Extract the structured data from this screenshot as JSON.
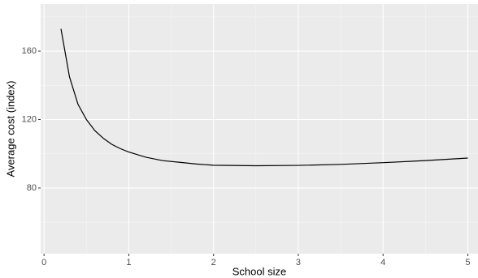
{
  "chart_data": {
    "type": "line",
    "x_label": "School size",
    "y_label": "Average cost (index)",
    "x": [
      0.2,
      0.3,
      0.4,
      0.5,
      0.6,
      0.7,
      0.8,
      0.9,
      1.0,
      1.2,
      1.4,
      1.6,
      1.8,
      2.0,
      2.5,
      3.0,
      3.5,
      4.0,
      4.5,
      5.0
    ],
    "series": [
      {
        "name": null,
        "color": "#000000",
        "values": [
          173,
          145,
          129,
          120,
          113.5,
          109,
          105.5,
          103,
          101,
          98,
          96,
          95,
          94,
          93.3,
          93,
          93.2,
          93.8,
          94.8,
          96,
          97.5
        ]
      }
    ],
    "xlim": [
      -0.04,
      5.12
    ],
    "ylim": [
      41.6,
      187.5
    ],
    "xticks": [
      0,
      1,
      2,
      3,
      4,
      5
    ],
    "yticks": [
      80,
      120,
      160
    ],
    "x_minor_ticks": [
      0.5,
      1.5,
      2.5,
      3.5,
      4.5
    ],
    "y_minor_ticks": [
      60,
      100,
      140,
      180
    ],
    "grid": true
  }
}
